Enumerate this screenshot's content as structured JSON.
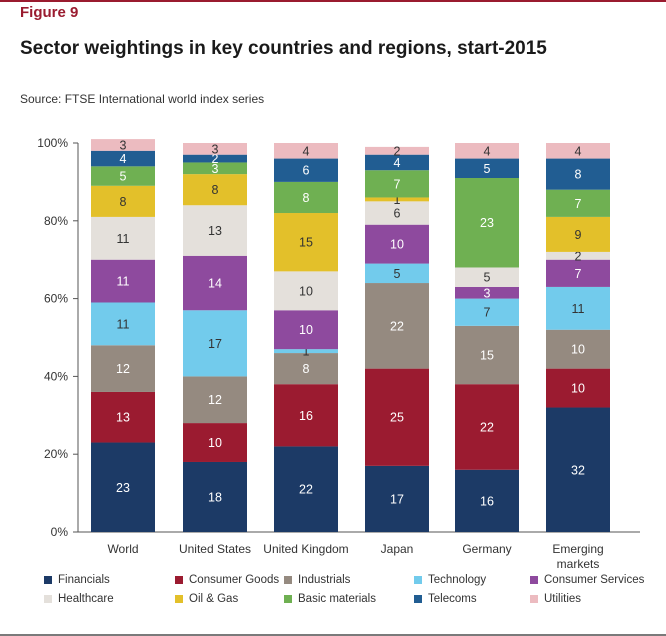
{
  "figure_label": "Figure 9",
  "title": "Sector weightings in key countries and regions, start-2015",
  "source": "Source: FTSE International world index series",
  "chart_data": {
    "type": "bar",
    "stacked": true,
    "categories": [
      "World",
      "United States",
      "United Kingdom",
      "Japan",
      "Germany",
      "Emerging markets"
    ],
    "ylim": [
      0,
      100
    ],
    "yticks": [
      "0%",
      "20%",
      "40%",
      "60%",
      "80%",
      "100%"
    ],
    "grid": false,
    "legend_position": "bottom",
    "series": [
      {
        "name": "Financials",
        "color": "#1c3a66",
        "values": [
          23,
          18,
          22,
          17,
          16,
          32
        ]
      },
      {
        "name": "Consumer Goods",
        "color": "#9b1b30",
        "values": [
          13,
          10,
          16,
          25,
          22,
          10
        ]
      },
      {
        "name": "Industrials",
        "color": "#958a80",
        "values": [
          12,
          12,
          8,
          22,
          15,
          10
        ]
      },
      {
        "name": "Technology",
        "color": "#72cbec",
        "values": [
          11,
          17,
          1,
          5,
          7,
          11
        ]
      },
      {
        "name": "Consumer Services",
        "color": "#8e4a9e",
        "values": [
          11,
          14,
          10,
          10,
          3,
          7
        ]
      },
      {
        "name": "Healthcare",
        "color": "#e4e0db",
        "values": [
          11,
          13,
          10,
          6,
          5,
          2
        ]
      },
      {
        "name": "Oil & Gas",
        "color": "#e3c02a",
        "values": [
          8,
          8,
          15,
          1,
          0,
          9
        ]
      },
      {
        "name": "Basic materials",
        "color": "#6fb052",
        "values": [
          5,
          3,
          8,
          7,
          23,
          7
        ]
      },
      {
        "name": "Telecoms",
        "color": "#215d92",
        "values": [
          4,
          2,
          6,
          4,
          5,
          8
        ]
      },
      {
        "name": "Utilities",
        "color": "#ecbbc0",
        "values": [
          3,
          3,
          4,
          2,
          4,
          4
        ]
      }
    ],
    "data_labels": [
      [
        "23",
        "13",
        "12",
        "11",
        "11",
        "11",
        "8",
        "5",
        "4",
        "3"
      ],
      [
        "18",
        "10",
        "12",
        "17",
        "14",
        "13",
        "8",
        "3",
        "2",
        "3"
      ],
      [
        "22",
        "16",
        "8",
        "1",
        "10",
        "10",
        "15",
        "8",
        "6",
        "4"
      ],
      [
        "17",
        "25",
        "22",
        "5",
        "10",
        "6",
        "1",
        "7",
        "4",
        "2"
      ],
      [
        "16",
        "22",
        "15",
        "7",
        "3",
        "5",
        "",
        "23",
        "5",
        "4"
      ],
      [
        "32",
        "10",
        "10",
        "11",
        "7",
        "2",
        "9",
        "7",
        "8",
        "4"
      ]
    ],
    "category_labels": [
      [
        "World"
      ],
      [
        "United States"
      ],
      [
        "United Kingdom"
      ],
      [
        "Japan"
      ],
      [
        "Germany"
      ],
      [
        "Emerging",
        "markets"
      ]
    ]
  }
}
